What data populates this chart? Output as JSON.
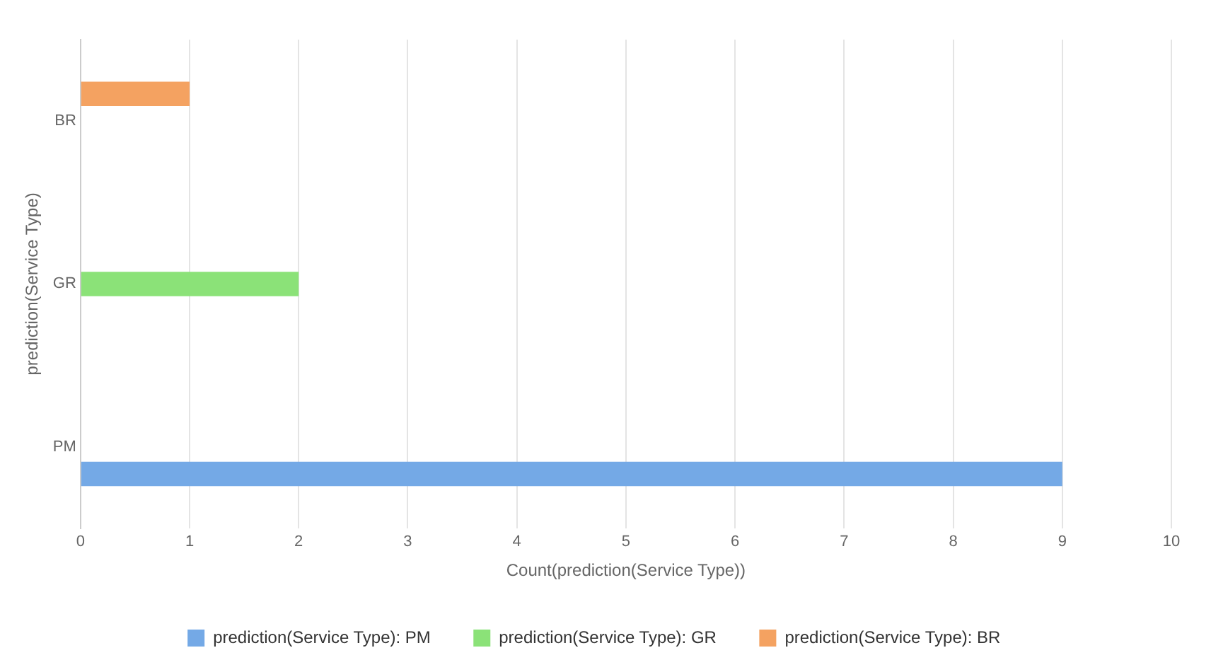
{
  "chart_data": {
    "type": "bar",
    "orientation": "horizontal",
    "xlabel": "Count(prediction(Service Type))",
    "ylabel": "prediction(Service Type)",
    "categories": [
      "BR",
      "GR",
      "PM"
    ],
    "series": [
      {
        "name": "prediction(Service Type): PM",
        "color": "#74a9e6",
        "values": [
          null,
          null,
          9
        ]
      },
      {
        "name": "prediction(Service Type): GR",
        "color": "#8be278",
        "values": [
          null,
          2,
          null
        ]
      },
      {
        "name": "prediction(Service Type): BR",
        "color": "#f4a261",
        "values": [
          1,
          null,
          null
        ]
      }
    ],
    "xlim": [
      0,
      10
    ],
    "xticks": [
      0,
      1,
      2,
      3,
      4,
      5,
      6,
      7,
      8,
      9,
      10
    ],
    "grid": "x",
    "legend": "bottom"
  }
}
